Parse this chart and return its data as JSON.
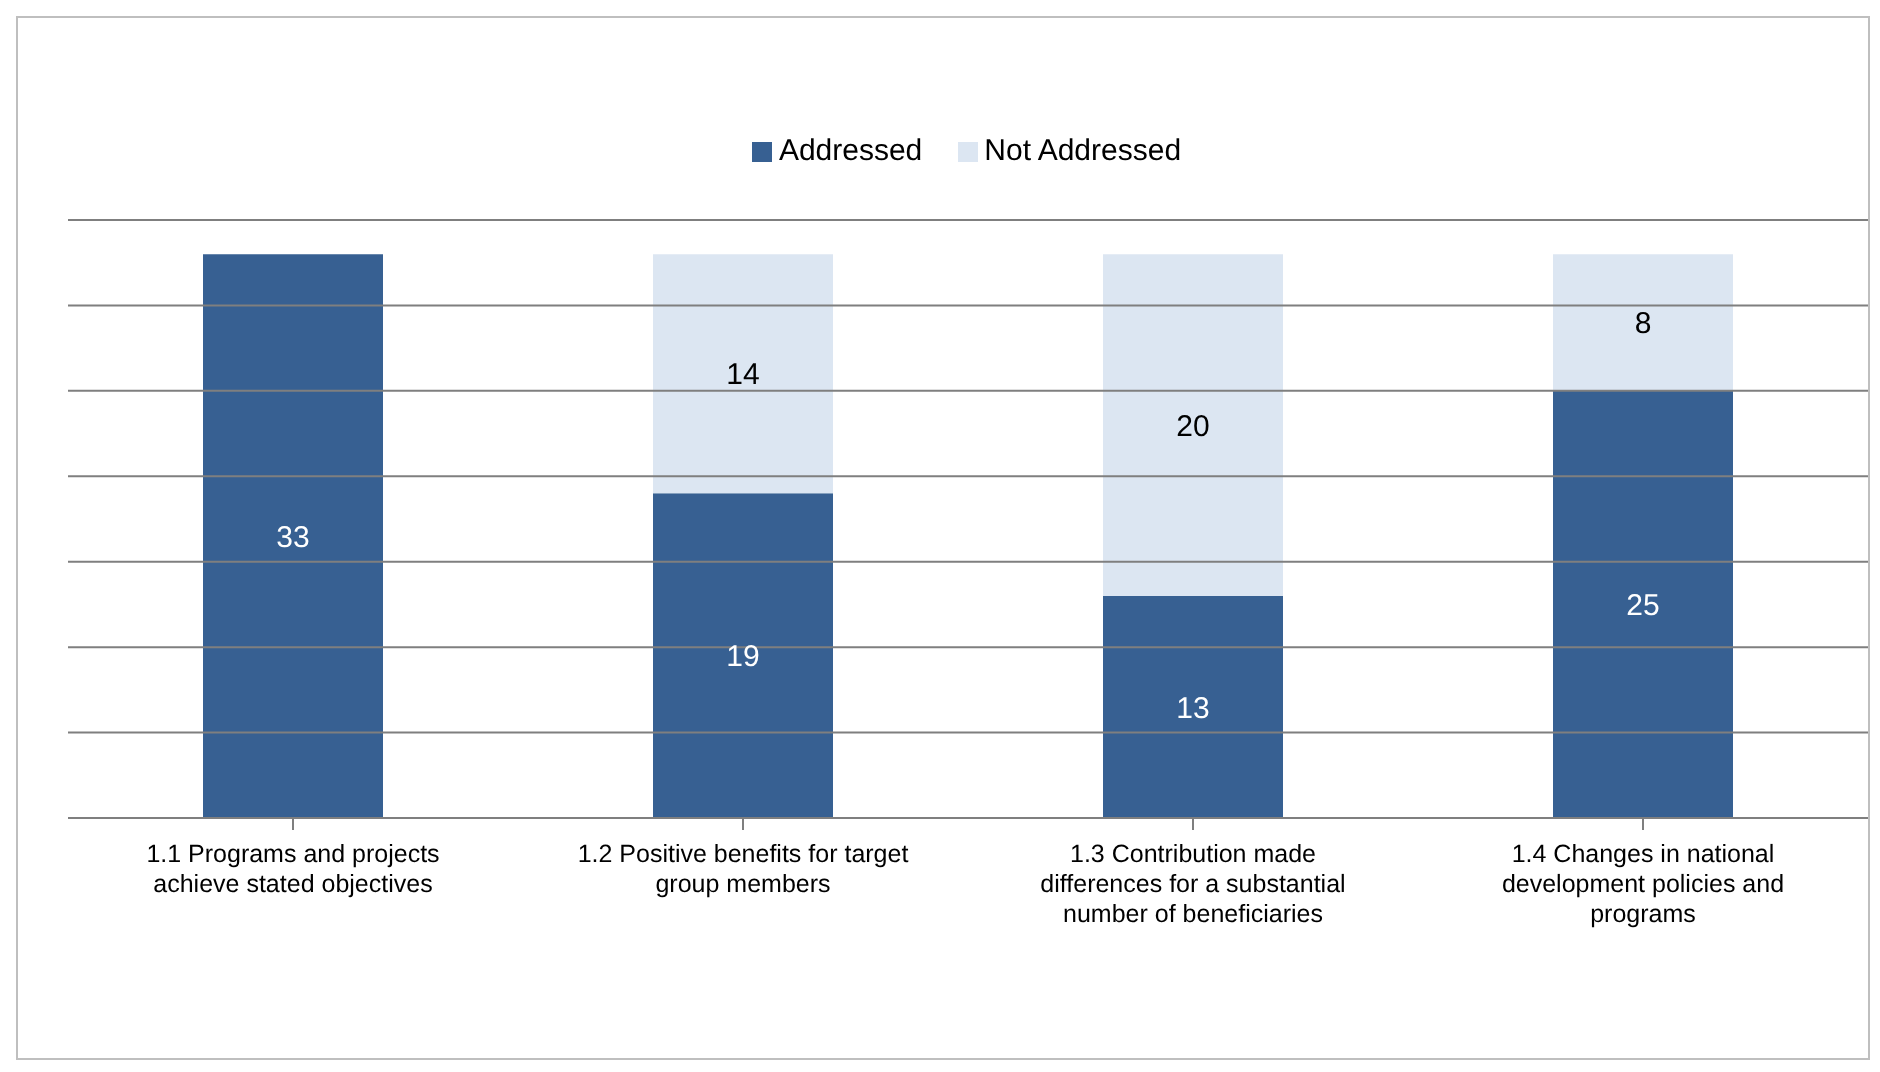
{
  "chart_data": {
    "type": "bar",
    "stacked": true,
    "categories": [
      "1.1 Programs and projects achieve stated objectives",
      "1.2 Positive benefits for target group members",
      "1.3 Contribution made differences for a substantial number of beneficiaries",
      "1.4 Changes in national development policies and programs"
    ],
    "series": [
      {
        "name": "Addressed",
        "color": "#376092",
        "values": [
          33,
          19,
          13,
          25
        ]
      },
      {
        "name": "Not Addressed",
        "color": "#dce6f2",
        "values": [
          null,
          14,
          20,
          8
        ]
      }
    ],
    "ylim": [
      0,
      35
    ],
    "yticks": [
      {
        "value": 0,
        "label": null
      },
      {
        "value": 5,
        "label": null
      },
      {
        "value": 10,
        "label": null
      },
      {
        "value": 15,
        "label": null
      },
      {
        "value": 20,
        "label": null
      },
      {
        "value": 25,
        "label": null
      },
      {
        "value": 30,
        "label": null
      },
      {
        "value": 35,
        "label": null
      }
    ],
    "tick_labels": "x",
    "grid": "y",
    "legend": "top",
    "data_labels": true
  }
}
